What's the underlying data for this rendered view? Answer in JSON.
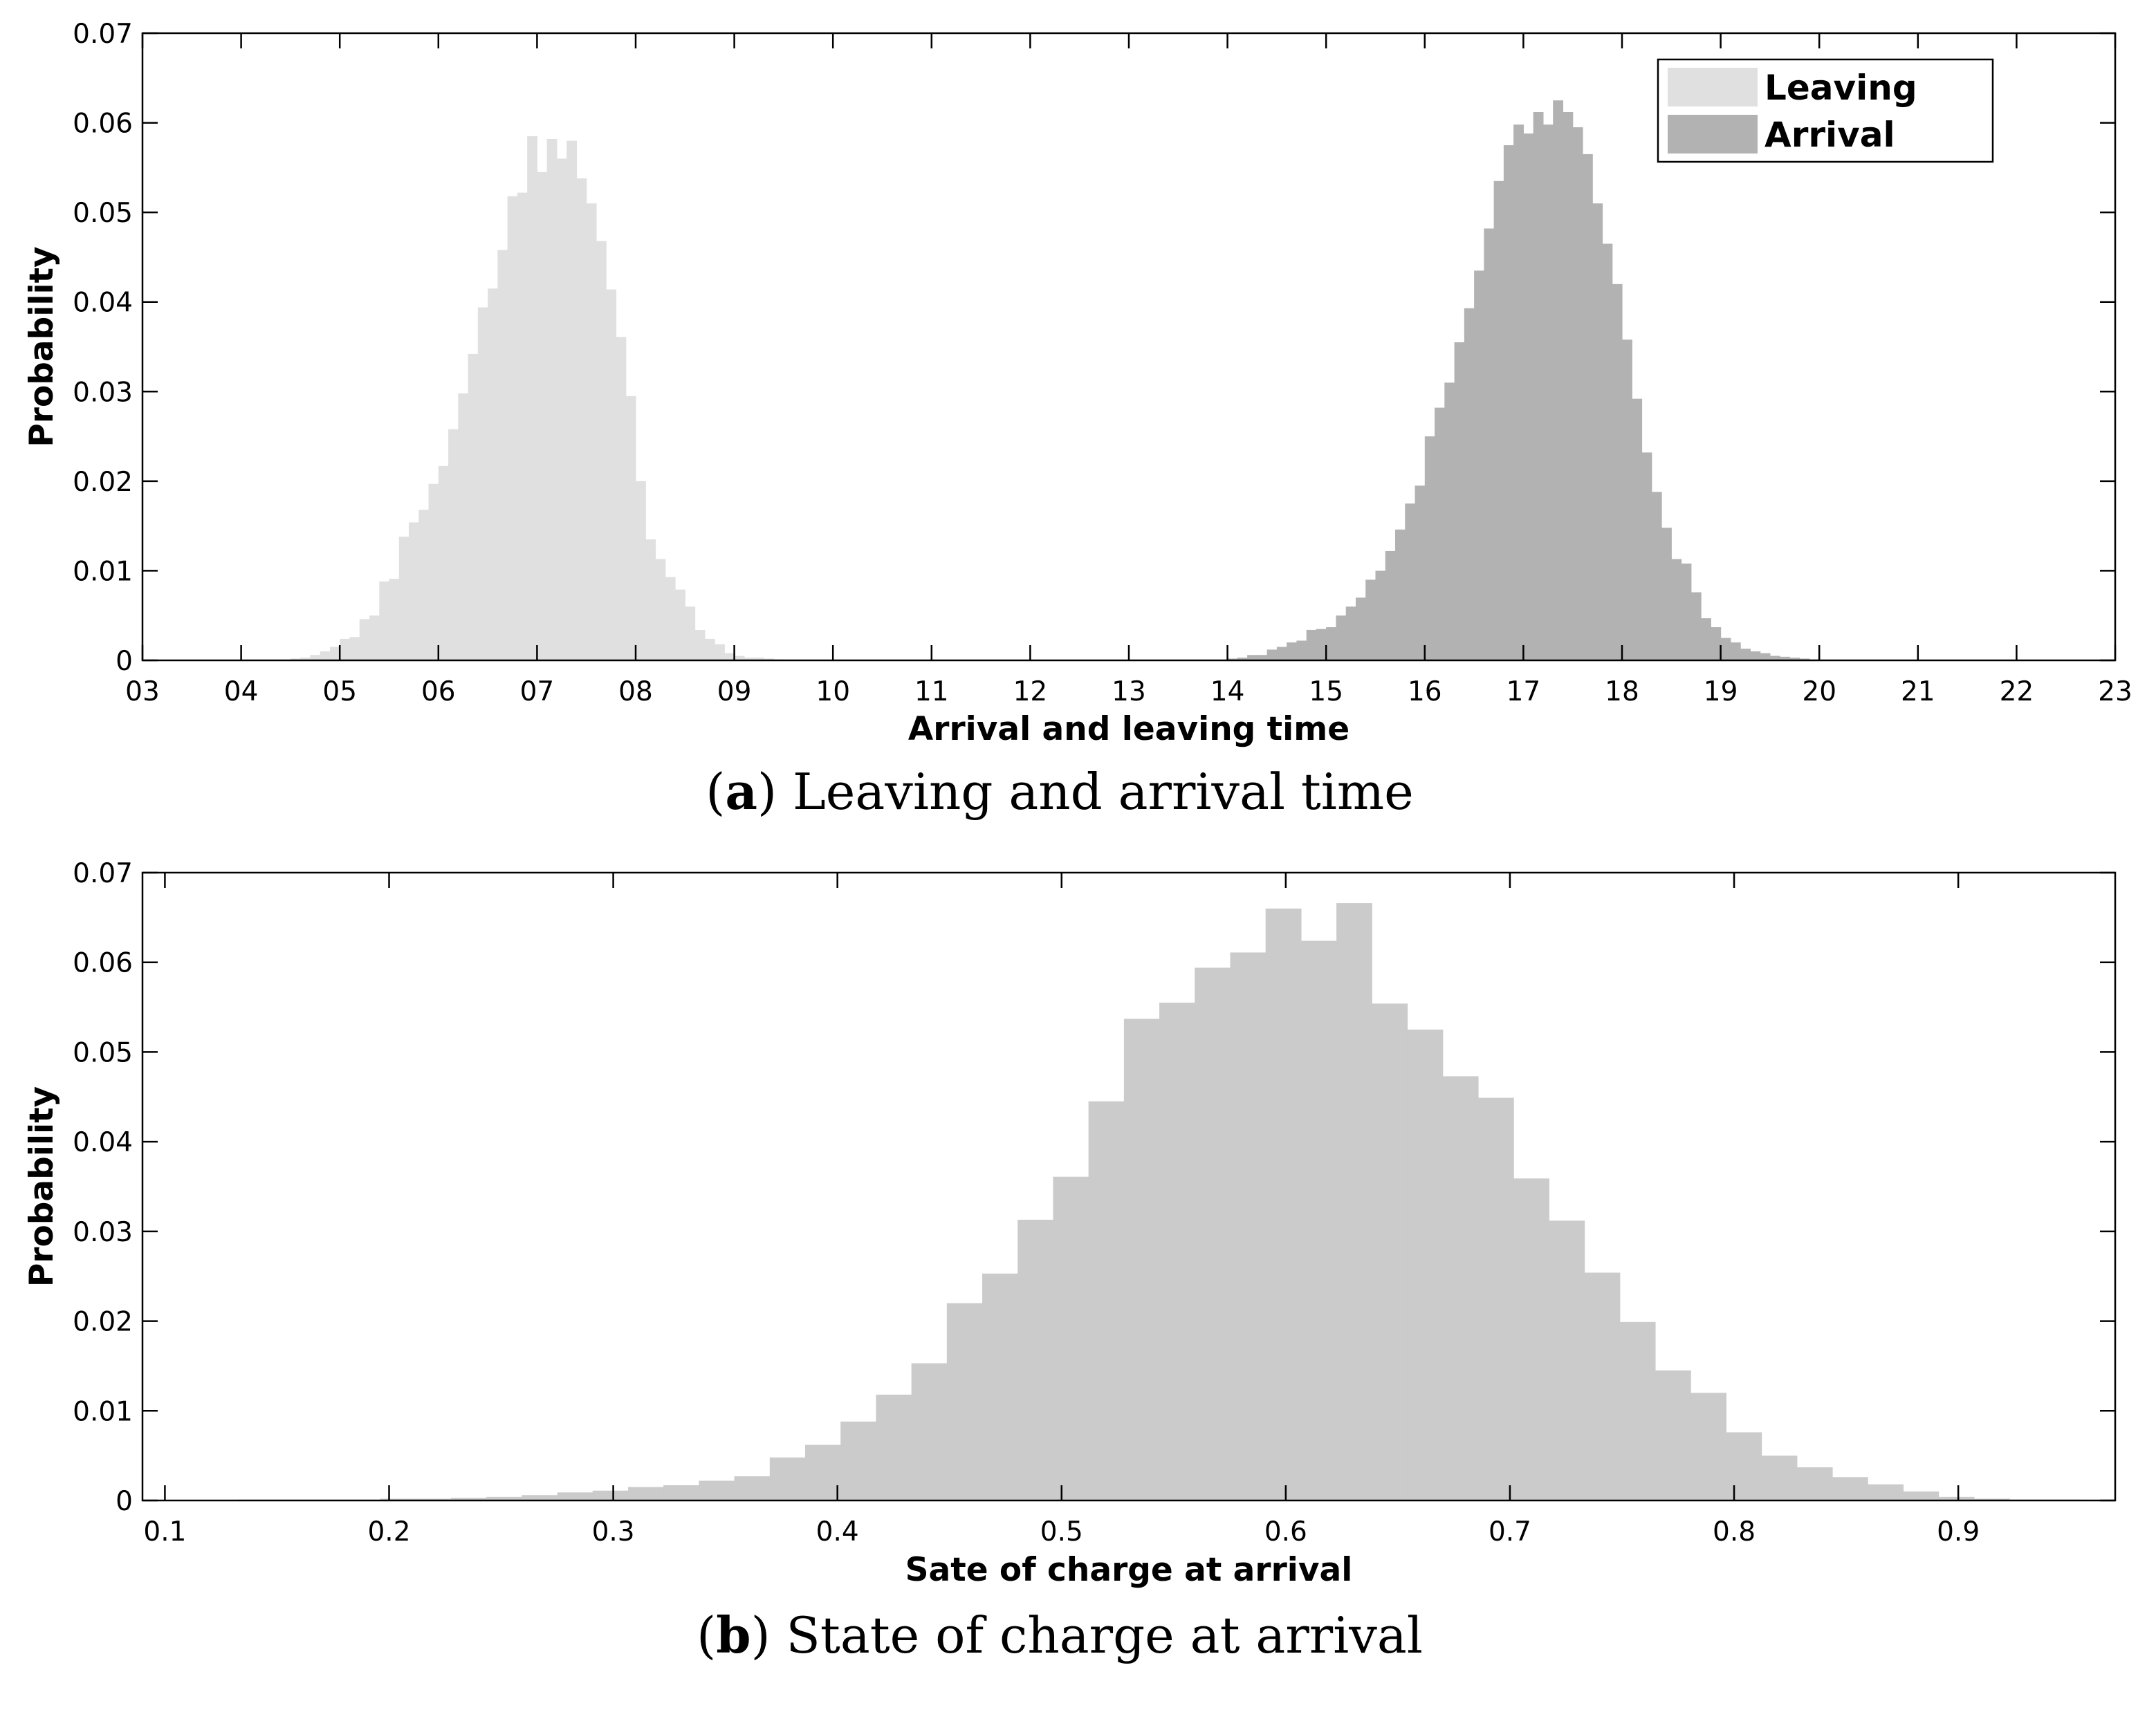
{
  "colors": {
    "leaving": "#e0e0e0",
    "arrival": "#b2b2b2",
    "soc": "#cbcbcb",
    "axis": "#000000"
  },
  "chart_data": [
    {
      "type": "bar",
      "panel": "a",
      "caption_letter": "a",
      "caption_text": " Leaving and arrival time",
      "xlabel": "Arrival and leaving time",
      "ylabel": "Probability",
      "xlim": [
        3,
        23
      ],
      "ylim": [
        0,
        0.07
      ],
      "xtick_values": [
        3,
        4,
        5,
        6,
        7,
        8,
        9,
        10,
        11,
        12,
        13,
        14,
        15,
        16,
        17,
        18,
        19,
        20,
        21,
        22,
        23
      ],
      "xtick_labels": [
        "03",
        "04",
        "05",
        "06",
        "07",
        "08",
        "09",
        "10",
        "11",
        "12",
        "13",
        "14",
        "15",
        "16",
        "17",
        "18",
        "19",
        "20",
        "21",
        "22",
        "23"
      ],
      "ytick_values": [
        0,
        0.01,
        0.02,
        0.03,
        0.04,
        0.05,
        0.06,
        0.07
      ],
      "ytick_labels": [
        "0",
        "0.01",
        "0.02",
        "0.03",
        "0.04",
        "0.05",
        "0.06",
        "0.07"
      ],
      "grid": false,
      "legend_position": "top-right",
      "series": [
        {
          "name": "Leaving",
          "color_key": "leaving",
          "bin_start": 4.5,
          "bin_width": 0.1,
          "values": [
            0.0002,
            0.0003,
            0.0006,
            0.001,
            0.0015,
            0.0024,
            0.0026,
            0.0046,
            0.005,
            0.0088,
            0.0091,
            0.0138,
            0.0154,
            0.0168,
            0.0197,
            0.0217,
            0.0258,
            0.0298,
            0.0342,
            0.0394,
            0.0415,
            0.0458,
            0.0518,
            0.0522,
            0.0585,
            0.0545,
            0.0582,
            0.056,
            0.058,
            0.0538,
            0.051,
            0.0468,
            0.0414,
            0.0361,
            0.0295,
            0.02,
            0.0135,
            0.0113,
            0.0093,
            0.0079,
            0.006,
            0.0034,
            0.0024,
            0.0018,
            0.0008,
            0.0005,
            0.0003,
            0.0003,
            0.0002,
            0.0001
          ]
        },
        {
          "name": "Arrival",
          "color_key": "arrival",
          "bin_start": 14.0,
          "bin_width": 0.1,
          "values": [
            0.0002,
            0.0003,
            0.0006,
            0.0006,
            0.0012,
            0.0015,
            0.002,
            0.0022,
            0.0034,
            0.0035,
            0.0037,
            0.005,
            0.006,
            0.007,
            0.009,
            0.01,
            0.0122,
            0.0146,
            0.0175,
            0.0195,
            0.025,
            0.0282,
            0.031,
            0.0355,
            0.0393,
            0.0435,
            0.0482,
            0.0535,
            0.0575,
            0.0598,
            0.0588,
            0.0612,
            0.0598,
            0.0625,
            0.0612,
            0.0595,
            0.0565,
            0.051,
            0.0465,
            0.042,
            0.0358,
            0.0292,
            0.0232,
            0.0188,
            0.0148,
            0.0113,
            0.0108,
            0.0076,
            0.0047,
            0.0037,
            0.0025,
            0.002,
            0.0013,
            0.001,
            0.0008,
            0.0005,
            0.0004,
            0.0003,
            0.0002,
            0.0001
          ]
        }
      ]
    },
    {
      "type": "bar",
      "panel": "b",
      "caption_letter": "b",
      "caption_text": " State of charge at arrival",
      "xlabel": "Sate of charge at arrival",
      "ylabel": "Probability",
      "xlim": [
        0.09,
        0.97
      ],
      "ylim": [
        0,
        0.07
      ],
      "xtick_values": [
        0.1,
        0.2,
        0.3,
        0.4,
        0.5,
        0.6,
        0.7,
        0.8,
        0.9
      ],
      "xtick_labels": [
        "0.1",
        "0.2",
        "0.3",
        "0.4",
        "0.5",
        "0.6",
        "0.7",
        "0.8",
        "0.9"
      ],
      "ytick_values": [
        0,
        0.01,
        0.02,
        0.03,
        0.04,
        0.05,
        0.06,
        0.07
      ],
      "ytick_labels": [
        "0",
        "0.01",
        "0.02",
        "0.03",
        "0.04",
        "0.05",
        "0.06",
        "0.07"
      ],
      "grid": false,
      "series": [
        {
          "color_key": "soc",
          "bin_start": 0.1328,
          "bin_width": 0.0158,
          "values": [
            0.0001,
            0.0001,
            0.0001,
            0.0001,
            0.0002,
            0.0002,
            0.0003,
            0.0004,
            0.0006,
            0.0009,
            0.0011,
            0.0015,
            0.0017,
            0.0022,
            0.0027,
            0.0048,
            0.0062,
            0.0088,
            0.0118,
            0.0153,
            0.022,
            0.0253,
            0.0313,
            0.0361,
            0.0445,
            0.0537,
            0.0555,
            0.0594,
            0.0611,
            0.066,
            0.0624,
            0.0666,
            0.0554,
            0.0525,
            0.0473,
            0.0449,
            0.0359,
            0.0312,
            0.0254,
            0.0199,
            0.0145,
            0.012,
            0.0076,
            0.005,
            0.0037,
            0.0026,
            0.0018,
            0.001,
            0.0004,
            0.0002,
            0.0001,
            0.0001
          ]
        }
      ]
    }
  ]
}
